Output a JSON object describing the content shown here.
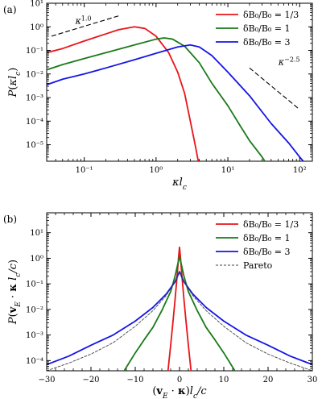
{
  "chart_data": [
    {
      "panel_label": "(a)",
      "type": "line",
      "xlabel": "κl_c",
      "ylabel": "P(κl_c)",
      "xscale": "log",
      "yscale": "log",
      "xlim": [
        0.03,
        150
      ],
      "ylim": [
        2e-06,
        10
      ],
      "xticks": [
        {
          "value": 0.1,
          "label": "10⁻¹"
        },
        {
          "value": 1,
          "label": "10⁰"
        },
        {
          "value": 10,
          "label": "10¹"
        },
        {
          "value": 100,
          "label": "10²"
        }
      ],
      "yticks": [
        {
          "value": 1e-05,
          "label": "10⁻⁵"
        },
        {
          "value": 0.0001,
          "label": "10⁻⁴"
        },
        {
          "value": 0.001,
          "label": "10⁻³"
        },
        {
          "value": 0.01,
          "label": "10⁻²"
        },
        {
          "value": 0.1,
          "label": "10⁻¹"
        },
        {
          "value": 1,
          "label": "10⁰"
        },
        {
          "value": 10,
          "label": "10¹"
        }
      ],
      "legend_position": "top-right",
      "series": [
        {
          "name": "δB₀/B₀ = 1/3",
          "color": "#e8141a",
          "x": [
            0.03,
            0.05,
            0.1,
            0.2,
            0.3,
            0.5,
            0.7,
            1.0,
            1.5,
            2.0,
            2.5,
            3.0,
            3.5,
            4.0
          ],
          "y": [
            0.08,
            0.12,
            0.25,
            0.5,
            0.75,
            1.0,
            0.85,
            0.4,
            0.08,
            0.012,
            0.0015,
            0.0001,
            1e-05,
            1.2e-06
          ]
        },
        {
          "name": "δB₀/B₀ = 1",
          "color": "#1a7a1a",
          "x": [
            0.03,
            0.05,
            0.1,
            0.2,
            0.5,
            1.0,
            1.3,
            1.7,
            2.5,
            4.0,
            6.0,
            10,
            15,
            20,
            30,
            40
          ],
          "y": [
            0.015,
            0.025,
            0.045,
            0.08,
            0.17,
            0.3,
            0.34,
            0.3,
            0.15,
            0.03,
            0.004,
            0.00045,
            6e-05,
            1.5e-05,
            3e-06,
            8e-07
          ]
        },
        {
          "name": "δB₀/B₀ = 3",
          "color": "#1515e6",
          "x": [
            0.03,
            0.05,
            0.1,
            0.2,
            0.5,
            1.0,
            2.0,
            3.0,
            4.0,
            6.0,
            10,
            20,
            40,
            70,
            100,
            130
          ],
          "y": [
            0.0035,
            0.006,
            0.01,
            0.018,
            0.04,
            0.075,
            0.14,
            0.17,
            0.14,
            0.06,
            0.012,
            0.0012,
            8e-05,
            1.2e-05,
            3e-06,
            1.2e-06
          ]
        }
      ],
      "annotations": [
        {
          "text": "κ^1.0",
          "x": [
            0.035,
            0.3
          ],
          "y": [
            0.4,
            2.9
          ]
        },
        {
          "text": "κ^−2.5",
          "x": [
            20,
            100
          ],
          "y": [
            0.018,
            0.00031
          ]
        }
      ]
    },
    {
      "panel_label": "(b)",
      "type": "line",
      "xlabel": "(v_E·κ)l_c/c",
      "ylabel": "P(v_E·κ l_c/c)",
      "xscale": "linear",
      "yscale": "log",
      "xlim": [
        -30,
        30
      ],
      "ylim": [
        4e-05,
        60
      ],
      "xticks": [
        {
          "value": -30,
          "label": "−30"
        },
        {
          "value": -20,
          "label": "−20"
        },
        {
          "value": -10,
          "label": "−10"
        },
        {
          "value": 0,
          "label": "0"
        },
        {
          "value": 10,
          "label": "10"
        },
        {
          "value": 20,
          "label": "20"
        },
        {
          "value": 30,
          "label": "30"
        }
      ],
      "yticks": [
        {
          "value": 0.0001,
          "label": "10⁻⁴"
        },
        {
          "value": 0.001,
          "label": "10⁻³"
        },
        {
          "value": 0.01,
          "label": "10⁻²"
        },
        {
          "value": 0.1,
          "label": "10⁻¹"
        },
        {
          "value": 1,
          "label": "10⁰"
        },
        {
          "value": 10,
          "label": "10¹"
        }
      ],
      "legend_position": "top-right",
      "series": [
        {
          "name": "δB₀/B₀ = 1/3",
          "color": "#e8141a",
          "x": [
            -2.6,
            -2.0,
            -1.5,
            -1.0,
            -0.5,
            -0.2,
            0,
            0.2,
            0.5,
            1.0,
            1.5,
            2.0,
            2.6
          ],
          "y": [
            4e-05,
            0.0004,
            0.003,
            0.025,
            0.25,
            1.2,
            2.7,
            1.2,
            0.25,
            0.025,
            0.003,
            0.0004,
            4e-05
          ]
        },
        {
          "name": "δB₀/B₀ = 1",
          "color": "#1a7a1a",
          "x": [
            -12.5,
            -10,
            -8,
            -6,
            -4,
            -2,
            -1,
            0,
            1,
            2,
            4,
            6,
            8,
            10,
            12.5
          ],
          "y": [
            4e-05,
            0.0002,
            0.00065,
            0.002,
            0.009,
            0.05,
            0.2,
            1.2,
            0.2,
            0.05,
            0.009,
            0.002,
            0.00065,
            0.0002,
            4e-05
          ]
        },
        {
          "name": "δB₀/B₀ = 3",
          "color": "#1515e6",
          "x": [
            -30,
            -25,
            -20,
            -15,
            -10,
            -6,
            -3,
            -1,
            0,
            1,
            3,
            6,
            10,
            15,
            20,
            25,
            30
          ],
          "y": [
            7e-05,
            0.00015,
            0.0004,
            0.001,
            0.0035,
            0.012,
            0.04,
            0.12,
            0.3,
            0.12,
            0.04,
            0.012,
            0.0035,
            0.001,
            0.0004,
            0.00015,
            7e-05
          ]
        },
        {
          "name": "Pareto",
          "color": "#444444",
          "dashed": true,
          "x": [
            -30,
            -25,
            -20,
            -15,
            -10,
            -6,
            -3,
            -1,
            0,
            1,
            3,
            6,
            10,
            15,
            20,
            25,
            30
          ],
          "y": [
            4e-05,
            8e-05,
            0.00018,
            0.0005,
            0.0022,
            0.009,
            0.035,
            0.12,
            0.3,
            0.12,
            0.035,
            0.009,
            0.0022,
            0.0005,
            0.00018,
            8e-05,
            4e-05
          ]
        }
      ]
    }
  ]
}
